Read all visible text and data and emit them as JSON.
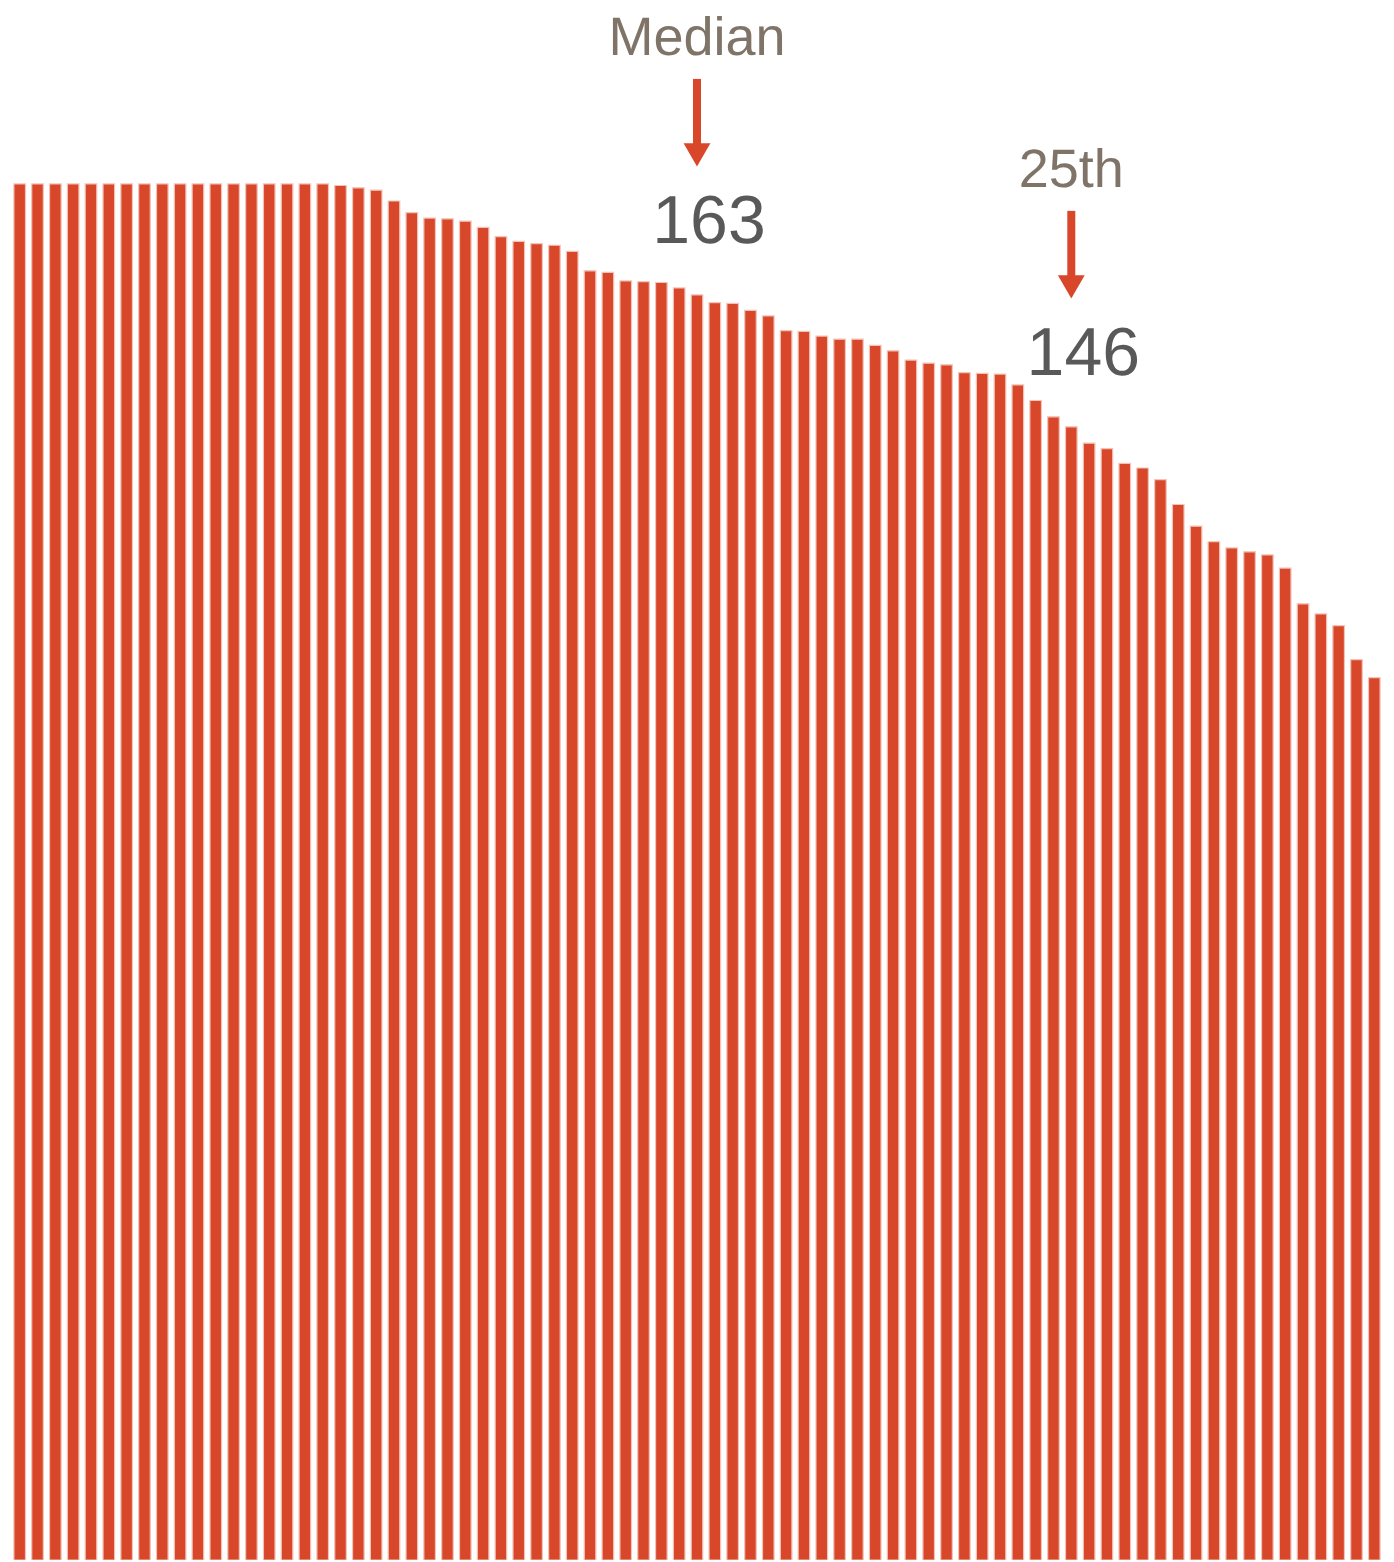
{
  "chart_data": {
    "type": "bar",
    "categories": [
      null,
      null,
      null,
      null,
      null,
      null,
      null,
      null,
      null,
      null,
      null,
      null,
      null,
      null,
      null,
      null,
      null,
      null,
      null,
      null,
      null,
      null,
      null,
      null,
      null,
      null,
      null,
      null,
      null,
      null,
      null,
      null,
      null,
      null,
      null,
      null,
      null,
      null,
      null,
      null,
      null,
      null,
      null,
      null,
      null,
      null,
      null,
      null,
      null,
      null,
      null,
      null,
      null,
      null,
      null,
      null,
      null,
      null,
      null,
      null,
      null,
      null,
      null,
      null,
      null,
      null,
      null,
      null,
      null,
      null,
      null,
      null,
      null,
      null,
      null,
      null,
      null
    ],
    "values": [
      177.3,
      177.3,
      177.3,
      177.3,
      177.3,
      177.3,
      177.3,
      177.3,
      177.3,
      177.3,
      177.3,
      177.3,
      177.3,
      177.3,
      177.3,
      177.3,
      177.3,
      177.3,
      177.1,
      176.8,
      176.5,
      175.1,
      173.6,
      172.9,
      172.8,
      172.5,
      171.7,
      170.5,
      169.9,
      169.6,
      169.4,
      168.6,
      166.1,
      165.9,
      164.8,
      164.7,
      164.6,
      163.9,
      163,
      162.0,
      161.9,
      161.0,
      160.3,
      158.4,
      158.3,
      157.7,
      157.3,
      157.3,
      156.5,
      155.8,
      154.6,
      154.2,
      154.0,
      153.0,
      152.9,
      152.8,
      151.4,
      149.4,
      147.3,
      146,
      143.9,
      143.2,
      141.3,
      140.7,
      139.2,
      136.0,
      133.2,
      131.2,
      130.4,
      129.9,
      129.5,
      127.8,
      123.2,
      121.9,
      120.4,
      116.0,
      113.7
    ],
    "value_labels": [
      null,
      null,
      null,
      null,
      null,
      null,
      null,
      null,
      null,
      null,
      null,
      null,
      null,
      null,
      null,
      null,
      null,
      null,
      null,
      null,
      null,
      null,
      null,
      null,
      null,
      null,
      null,
      null,
      null,
      null,
      null,
      null,
      null,
      null,
      null,
      null,
      null,
      null,
      "163",
      null,
      null,
      null,
      null,
      null,
      null,
      null,
      null,
      null,
      null,
      null,
      null,
      null,
      null,
      null,
      null,
      null,
      null,
      null,
      null,
      "146",
      null,
      null,
      null,
      null,
      null,
      null,
      null,
      null,
      null,
      null,
      null,
      null,
      null,
      null,
      null,
      null,
      null
    ],
    "annotations": [
      "Median",
      "25th"
    ],
    "color": "#d9472b",
    "ylim": [
      0,
      201
    ],
    "tick_labels": false
  }
}
